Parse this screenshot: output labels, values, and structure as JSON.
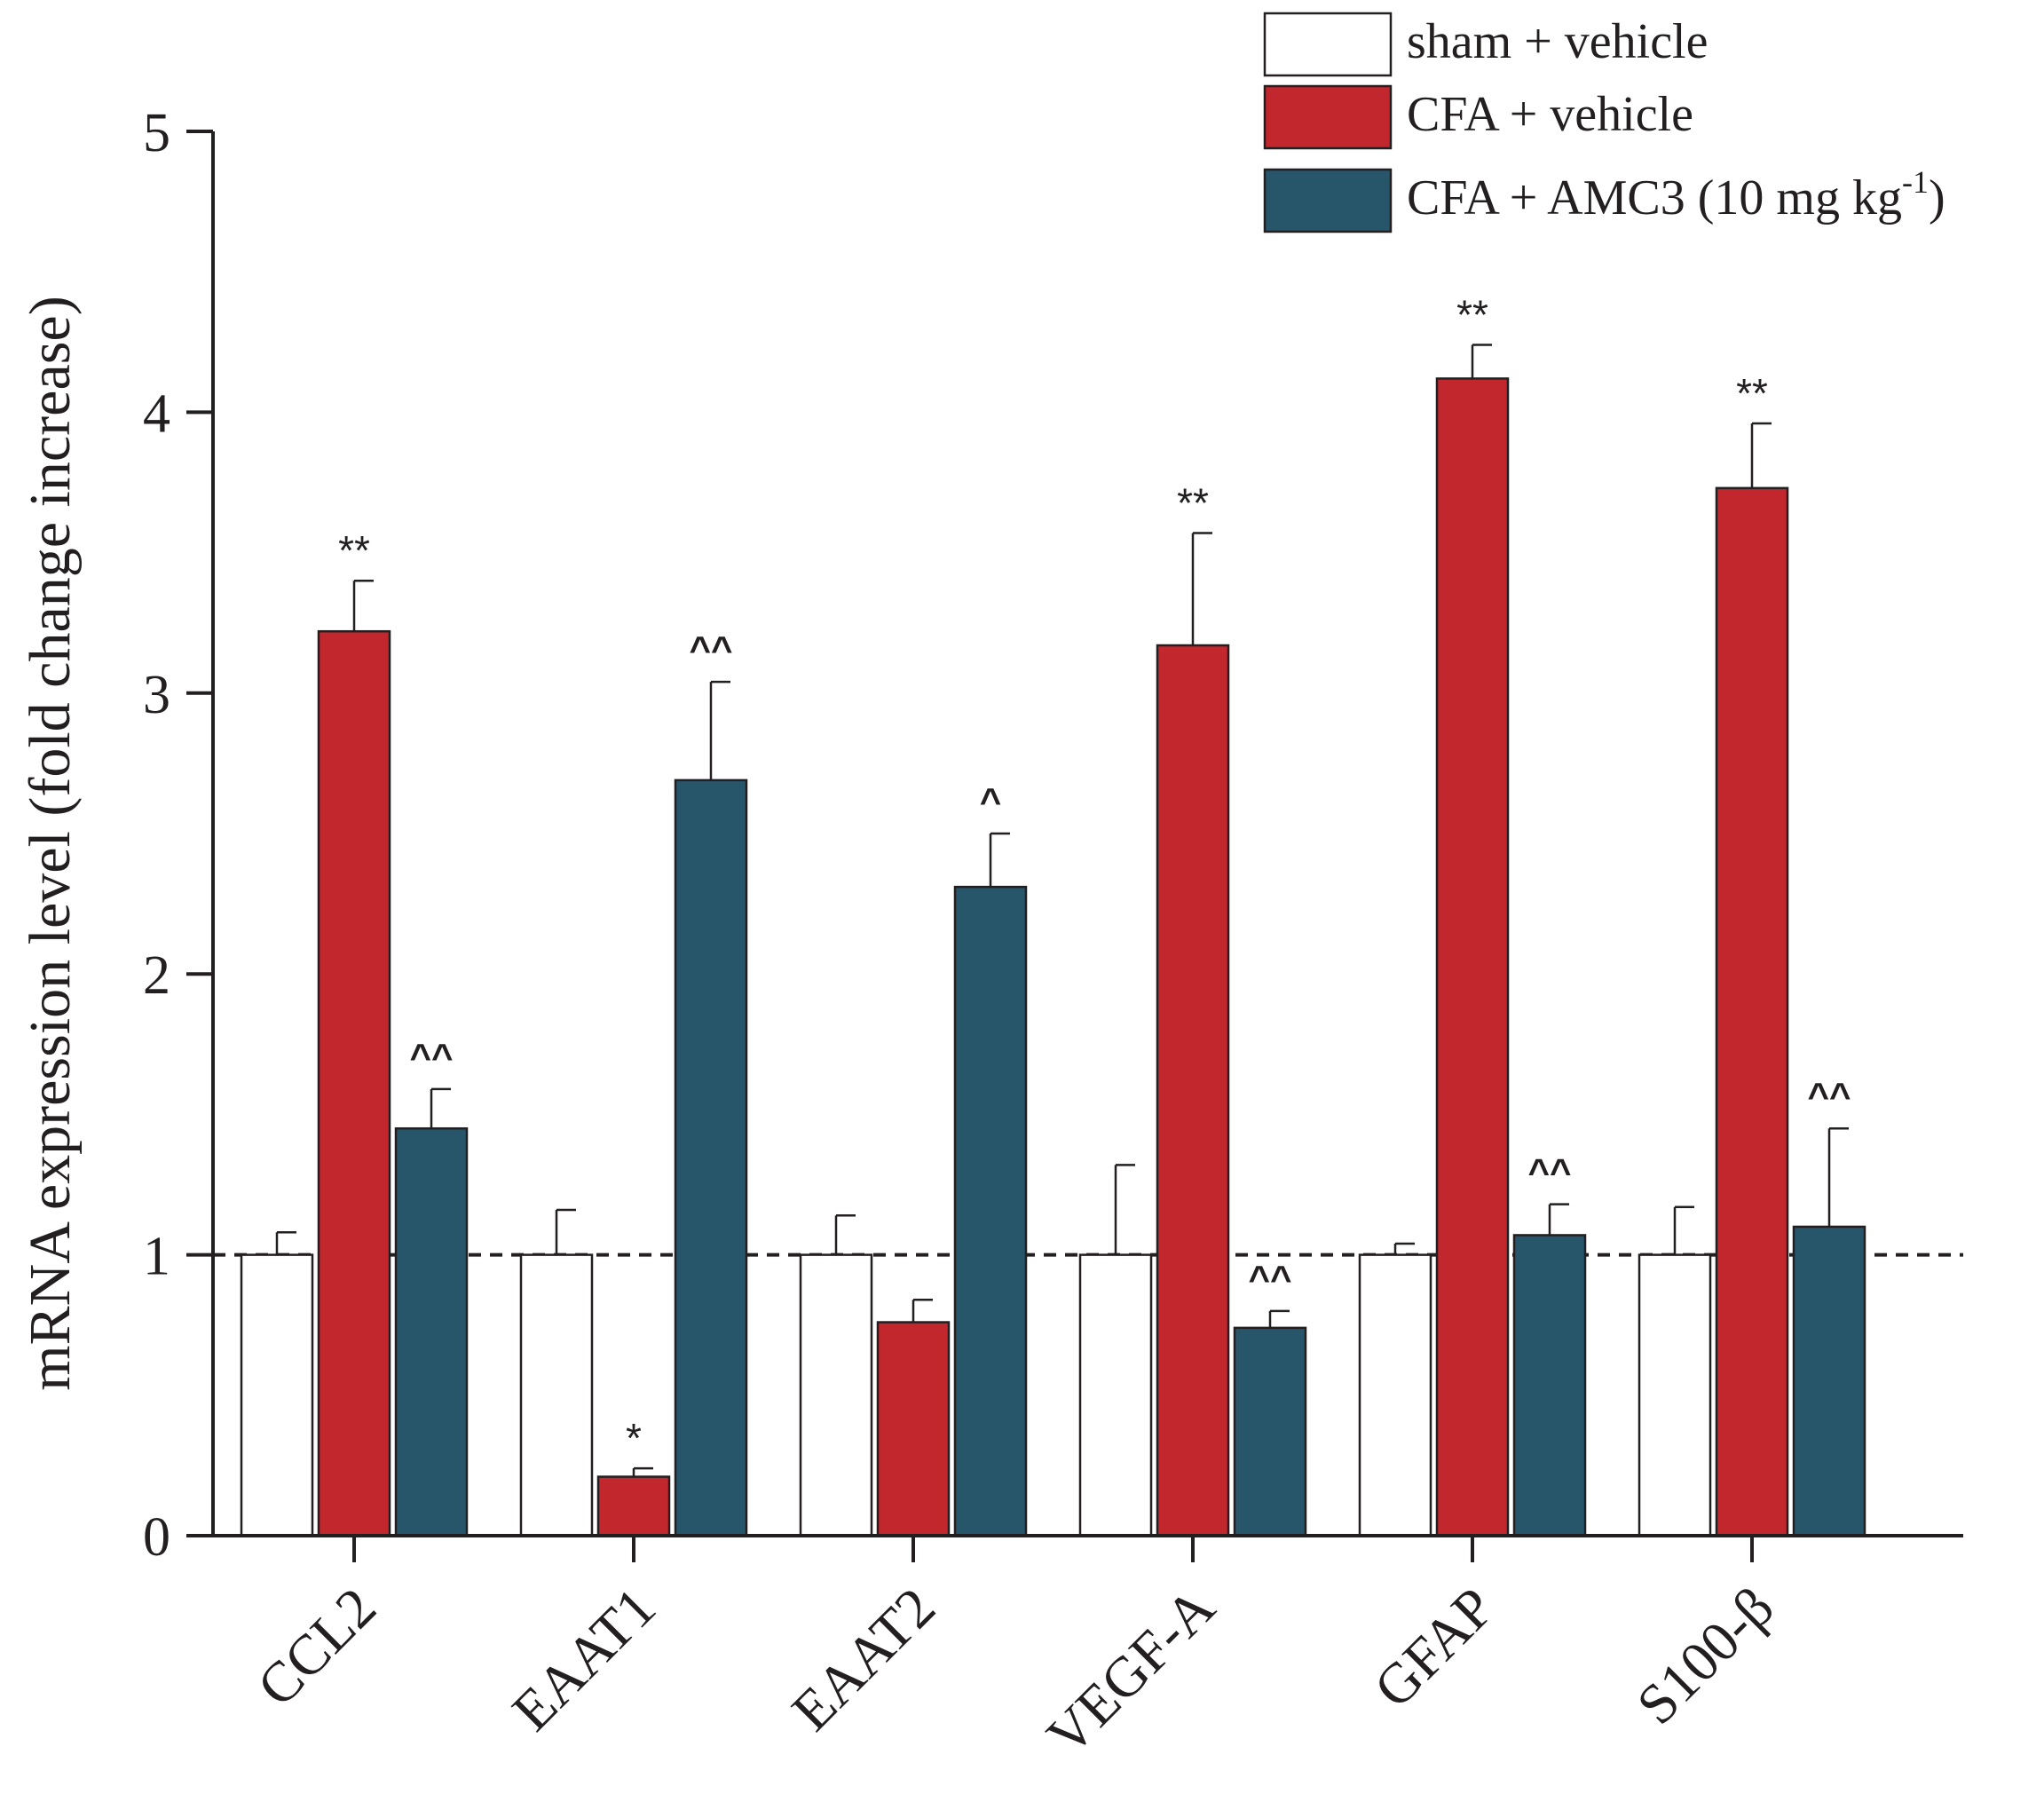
{
  "chart_data": {
    "type": "bar",
    "ylabel": "mRNA expression level (fold change increase)",
    "ylim": [
      0,
      5
    ],
    "yticks": [
      "0",
      "1",
      "2",
      "3",
      "4",
      "5"
    ],
    "reference_line": 1,
    "categories": [
      "CCL2",
      "EAAT1",
      "EAAT2",
      "VEGF-A",
      "GFAP",
      "S100-β"
    ],
    "series": [
      {
        "name": "sham + vehicle",
        "color": "#ffffff",
        "values": [
          1.0,
          1.0,
          1.0,
          1.0,
          1.0,
          1.0
        ],
        "errors": [
          0.08,
          0.16,
          0.14,
          0.32,
          0.04,
          0.17
        ],
        "annotations": [
          "",
          "",
          "",
          "",
          "",
          ""
        ]
      },
      {
        "name": "CFA + vehicle",
        "color": "#c1272d",
        "values": [
          3.22,
          0.21,
          0.76,
          3.17,
          4.12,
          3.73
        ],
        "errors": [
          0.18,
          0.03,
          0.08,
          0.4,
          0.12,
          0.23
        ],
        "annotations": [
          "**",
          "*",
          "",
          "**",
          "**",
          "**"
        ]
      },
      {
        "name": "CFA + AMC3 (10 mg kg",
        "name_superscript": "-1",
        "name_suffix": ")",
        "color": "#27556a",
        "values": [
          1.45,
          2.69,
          2.31,
          0.74,
          1.07,
          1.1
        ],
        "errors": [
          0.14,
          0.35,
          0.19,
          0.06,
          0.11,
          0.35
        ],
        "annotations": [
          "^^",
          "^^",
          "^",
          "^^",
          "^^",
          "^^"
        ]
      }
    ]
  }
}
